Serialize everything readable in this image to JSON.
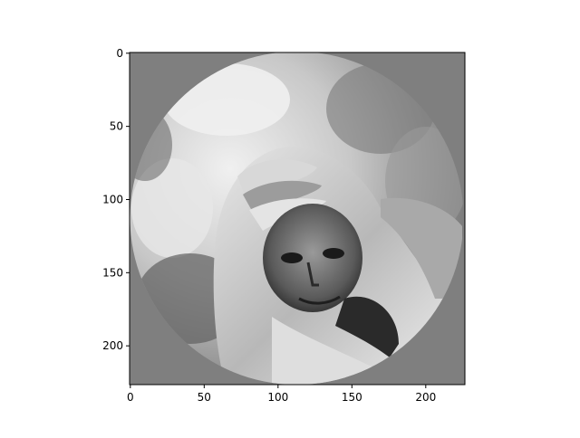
{
  "chart_data": {
    "type": "image",
    "content": "grayscale photograph masked to a circle on a mid-gray background",
    "image_subject": "portrait of an elderly person wrapped in a light head shawl, looking toward the viewer",
    "colormap": "gray",
    "background_value_color": "#7f7f7f",
    "xlim": [
      -0.5,
      226.5
    ],
    "ylim": [
      226.5,
      -0.5
    ],
    "x_axis": {
      "ticks": [
        0,
        50,
        100,
        150,
        200
      ],
      "tick_labels": [
        "0",
        "50",
        "100",
        "150",
        "200"
      ],
      "label": ""
    },
    "y_axis": {
      "ticks": [
        0,
        50,
        100,
        150,
        200
      ],
      "tick_labels": [
        "0",
        "50",
        "100",
        "150",
        "200"
      ],
      "label": "",
      "inverted": true
    },
    "grid": false,
    "title": ""
  }
}
